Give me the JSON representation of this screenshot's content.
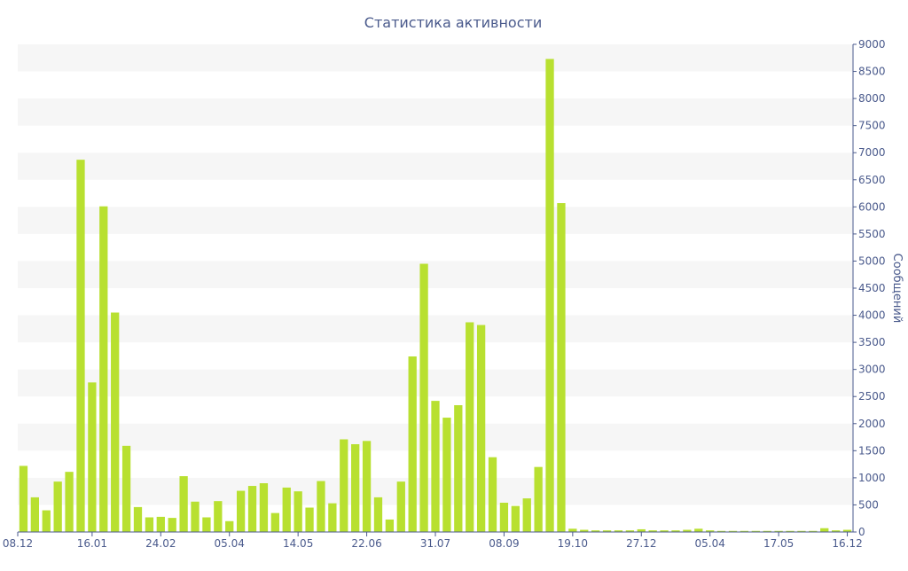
{
  "chart_data": {
    "type": "bar",
    "title": "Статистика активности",
    "ylabel": "Сообщений",
    "xlabel": "",
    "ylim": [
      0,
      9000
    ],
    "ytick_step": 500,
    "y_axis_side": "right",
    "grid": "alternating horizontal bands",
    "x_tick_labels": [
      {
        "label": "08.12",
        "index": 0
      },
      {
        "label": "16.01",
        "index": 6
      },
      {
        "label": "24.02",
        "index": 12
      },
      {
        "label": "05.04",
        "index": 18
      },
      {
        "label": "14.05",
        "index": 24
      },
      {
        "label": "22.06",
        "index": 30
      },
      {
        "label": "31.07",
        "index": 36
      },
      {
        "label": "08.09",
        "index": 42
      },
      {
        "label": "19.10",
        "index": 48
      },
      {
        "label": "27.12",
        "index": 54
      },
      {
        "label": "05.04",
        "index": 60
      },
      {
        "label": "17.05",
        "index": 66
      },
      {
        "label": "16.12",
        "index": 72
      }
    ],
    "series": [
      {
        "values": [
          1220,
          640,
          400,
          930,
          1110,
          6870,
          2760,
          6010,
          4050,
          1590,
          460,
          270,
          280,
          260,
          1030,
          560,
          270,
          570,
          200,
          760,
          850,
          900,
          350,
          820,
          750,
          450,
          940,
          530,
          1710,
          1620,
          1680,
          640,
          230,
          930,
          3240,
          4950,
          2420,
          2110,
          2340,
          3870,
          3820,
          1380,
          540,
          480,
          620,
          1200,
          8730,
          6070,
          60,
          40,
          30,
          30,
          30,
          30,
          50,
          30,
          30,
          30,
          40,
          60,
          30,
          20,
          20,
          20,
          20,
          20,
          20,
          20,
          20,
          20,
          70,
          30,
          40
        ]
      }
    ]
  },
  "colors": {
    "bar": "#b8e030",
    "band": "#f6f6f6",
    "axis_text": "#4a5a8c"
  }
}
